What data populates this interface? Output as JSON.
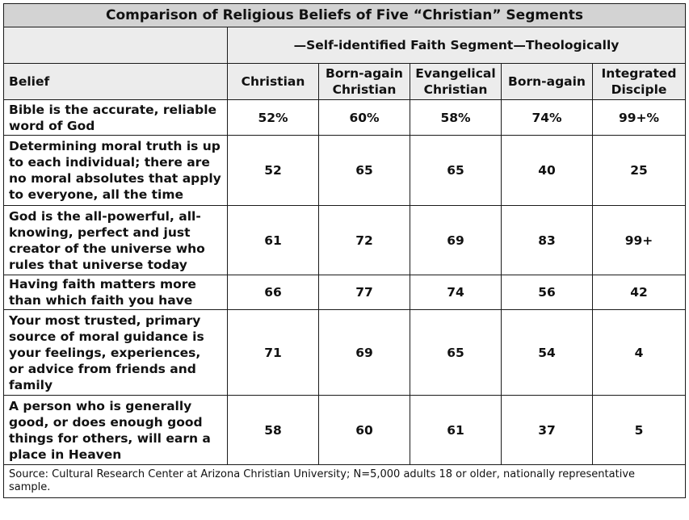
{
  "chart_data": {
    "type": "table",
    "title": "Comparison of Religious Beliefs of Five “Christian” Segments",
    "column_group_label": "—Self-identified Faith Segment—Theologically",
    "row_header_label": "Belief",
    "columns": [
      [
        "Christian"
      ],
      [
        "Born-again",
        "Christian"
      ],
      [
        "Evangelical",
        "Christian"
      ],
      [
        "Born-again"
      ],
      [
        "Integrated",
        "Disciple"
      ]
    ],
    "rows": [
      {
        "lines": [
          "Bible is the accurate, reliable",
          "word of God"
        ],
        "values": [
          "52%",
          "60%",
          "58%",
          "74%",
          "99+%"
        ]
      },
      {
        "lines": [
          "Determining moral truth is up",
          "to each individual; there are",
          "no moral absolutes that apply",
          "to everyone, all the time"
        ],
        "values": [
          "52",
          "65",
          "65",
          "40",
          "25"
        ]
      },
      {
        "lines": [
          "God is the all-powerful, all-",
          "knowing, perfect and just",
          "creator of the universe who",
          "rules that universe today"
        ],
        "values": [
          "61",
          "72",
          "69",
          "83",
          "99+"
        ]
      },
      {
        "lines": [
          "Having faith matters more",
          "than which faith you have"
        ],
        "values": [
          "66",
          "77",
          "74",
          "56",
          "42"
        ]
      },
      {
        "lines": [
          "Your most trusted, primary",
          "source of moral guidance is",
          "your feelings, experiences,",
          "or advice from friends and",
          "family"
        ],
        "values": [
          "71",
          "69",
          "65",
          "54",
          "4"
        ]
      },
      {
        "lines": [
          "A person who is generally",
          "good, or does enough good",
          "things for others, will earn a",
          "place in Heaven"
        ],
        "values": [
          "58",
          "60",
          "61",
          "37",
          "5"
        ]
      }
    ],
    "source_lines": [
      "Source: Cultural Research Center at Arizona Christian University; N=5,000 adults 18 or older, nationally representative",
      "sample."
    ]
  }
}
